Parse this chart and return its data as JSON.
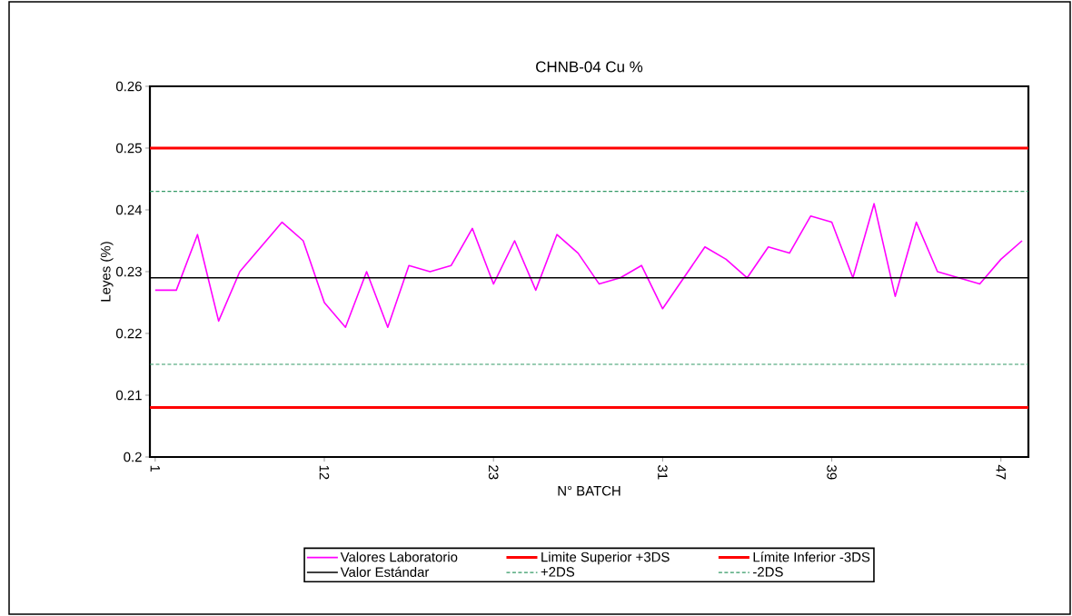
{
  "chart_data": {
    "type": "line",
    "title": "CHNB-04 Cu  %",
    "xlabel": "N° BATCH",
    "ylabel": "Leyes (%)",
    "categories": [
      "1",
      null,
      null,
      null,
      null,
      null,
      null,
      null,
      "12",
      null,
      null,
      null,
      null,
      null,
      null,
      null,
      "23",
      null,
      null,
      null,
      null,
      null,
      null,
      null,
      "31",
      null,
      null,
      null,
      null,
      null,
      null,
      null,
      "39",
      null,
      null,
      null,
      null,
      null,
      null,
      null,
      "47",
      null
    ],
    "series": [
      {
        "name": "Valores Laboratorio",
        "color": "#ff00ff",
        "values": [
          0.227,
          0.227,
          0.236,
          0.222,
          0.23,
          0.234,
          0.238,
          0.235,
          0.225,
          0.221,
          0.23,
          0.221,
          0.231,
          0.23,
          0.231,
          0.237,
          0.228,
          0.235,
          0.227,
          0.236,
          0.233,
          0.228,
          0.229,
          0.231,
          0.224,
          0.229,
          0.234,
          0.232,
          0.229,
          0.234,
          0.233,
          0.239,
          0.238,
          0.229,
          0.241,
          0.226,
          0.238,
          0.23,
          0.229,
          0.228,
          0.232,
          0.235
        ]
      }
    ],
    "ylim": [
      0.2,
      0.26
    ],
    "yticks": [
      0.2,
      0.21,
      0.22,
      0.23,
      0.24,
      0.25,
      0.26
    ],
    "ref_lines": [
      {
        "axis": "y",
        "value": 0.25,
        "label": "Limite Superior +3DS",
        "color": "#ff0000",
        "line_style": "solid"
      },
      {
        "axis": "y",
        "value": 0.208,
        "label": "Límite Inferior -3DS",
        "color": "#ff0000",
        "line_style": "solid"
      },
      {
        "axis": "y",
        "value": 0.229,
        "label": "Valor Estándar",
        "color": "#000000",
        "line_style": "solid"
      },
      {
        "axis": "y",
        "value": 0.243,
        "label": "+2DS",
        "color": "#339966",
        "line_style": "dashed"
      },
      {
        "axis": "y",
        "value": 0.215,
        "label": "-2DS",
        "color": "#339966",
        "line_style": "dashed"
      }
    ],
    "legend": "bottom",
    "grid": false,
    "marker": "none",
    "line_style": "solid"
  }
}
